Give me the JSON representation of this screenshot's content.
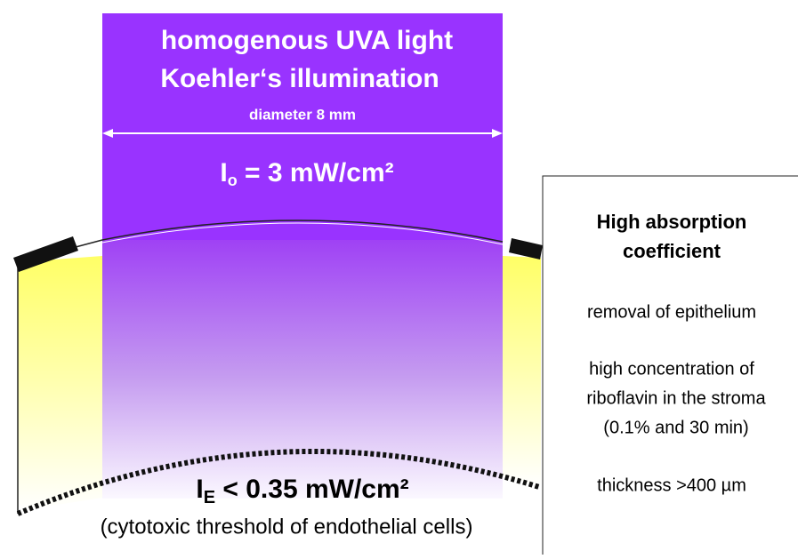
{
  "beam": {
    "title_lines": [
      "homogenous UVA light",
      "Koehler‘s illumination"
    ],
    "diameter": "diameter 8 mm",
    "incident": {
      "symbol": "I",
      "subscript": "o",
      "value": " = 3 mW/cm²"
    }
  },
  "endothelium": {
    "symbol": "I",
    "subscript": "E",
    "value": " < 0.35 mW/cm²",
    "caption": "(cytotoxic threshold of endothelial cells)"
  },
  "panel": {
    "heading": [
      "High absorption",
      "coefficient"
    ],
    "items": [
      "removal of epithelium",
      "high concentration of",
      "riboflavin in the stroma",
      "(0.1% and 30 min)",
      "thickness >400 µm"
    ]
  }
}
